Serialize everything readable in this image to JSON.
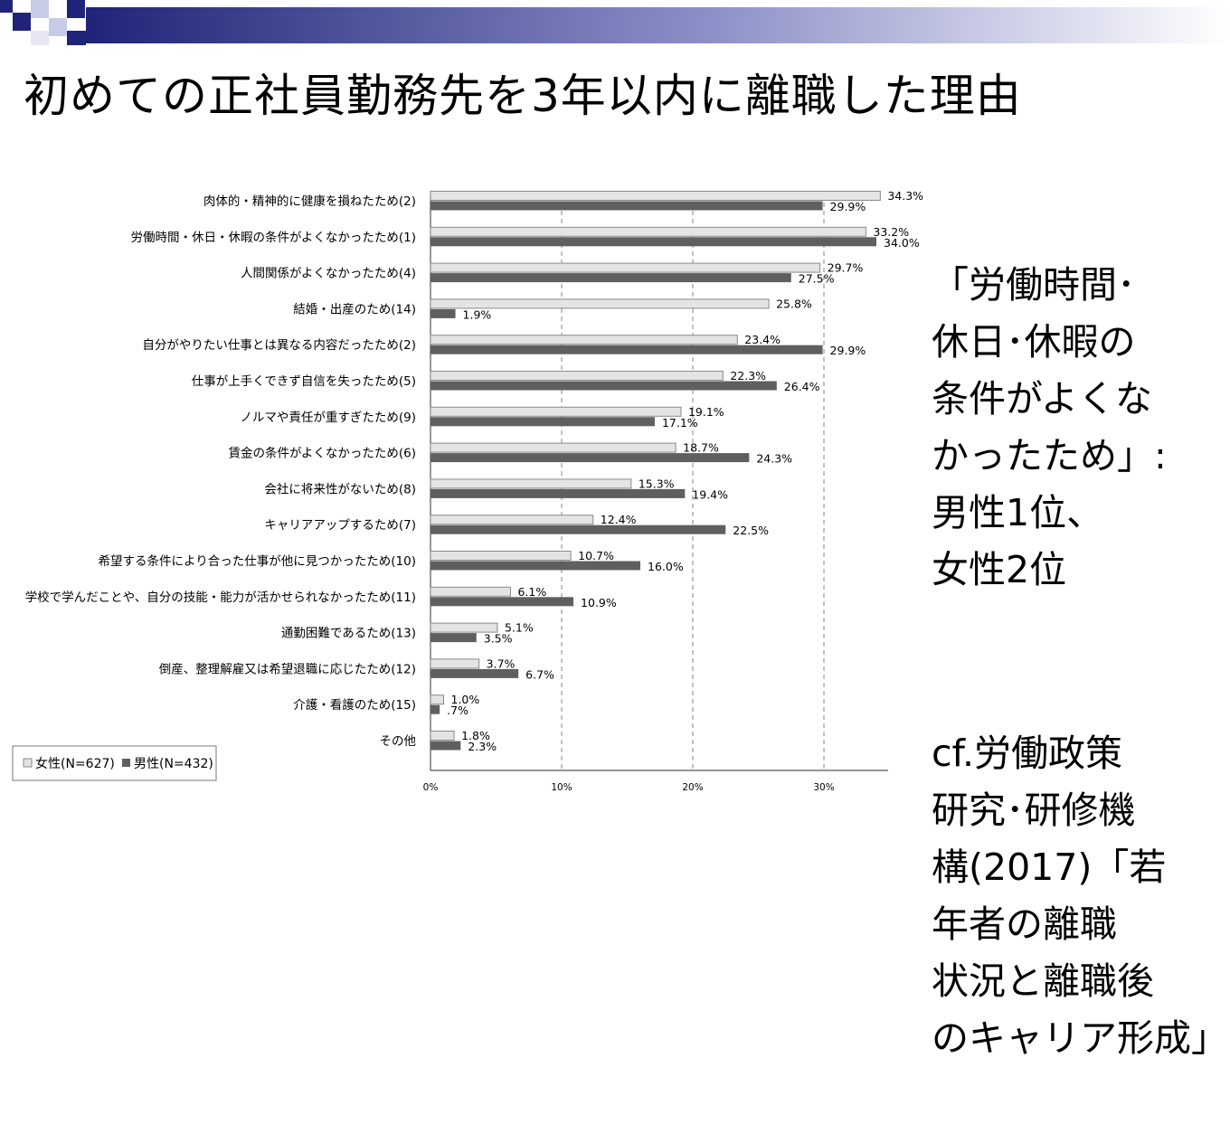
{
  "title": "初めての正社員勤務先を3年以内に離職した理由",
  "side_text": {
    "note": "「労働時間･\n休日･休暇の\n条件がよくな\nかったため」:\n男性1位、\n女性2位",
    "citation": "cf.労働政策\n研究･研修機\n構(2017)「若\n年者の離職\n状況と離職後\nのキャリア形成」"
  },
  "colors": {
    "female_fill": "#e4e4e4",
    "female_stroke": "#8a8a8a",
    "male_fill": "#5f5f5f",
    "grid": "#9a9a9a",
    "header_dark": "#1f2478"
  },
  "chart_data": {
    "type": "bar",
    "orientation": "horizontal",
    "categories": [
      "肉体的・精神的に健康を損ねたため(2)",
      "労働時間・休日・休暇の条件がよくなかったため(1)",
      "人間関係がよくなかったため(4)",
      "結婚・出産のため(14)",
      "自分がやりたい仕事とは異なる内容だったため(2)",
      "仕事が上手くできず自信を失ったため(5)",
      "ノルマや責任が重すぎたため(9)",
      "賃金の条件がよくなかったため(6)",
      "会社に将来性がないため(8)",
      "キャリアアップするため(7)",
      "希望する条件により合った仕事が他に見つかったため(10)",
      "学校で学んだことや、自分の技能・能力が活かせられなかったため(11)",
      "通勤困難であるため(13)",
      "倒産、整理解雇又は希望退職に応じたため(12)",
      "介護・看護のため(15)",
      "その他"
    ],
    "series": [
      {
        "name": "女性(N=627)",
        "values": [
          34.3,
          33.2,
          29.7,
          25.8,
          23.4,
          22.3,
          19.1,
          18.7,
          15.3,
          12.4,
          10.7,
          6.1,
          5.1,
          3.7,
          1.0,
          1.8
        ],
        "labels": [
          "34.3%",
          "33.2%",
          "29.7%",
          "25.8%",
          "23.4%",
          "22.3%",
          "19.1%",
          "18.7%",
          "15.3%",
          "12.4%",
          "10.7%",
          "6.1%",
          "5.1%",
          "3.7%",
          "1.0%",
          "1.8%"
        ]
      },
      {
        "name": "男性(N=432)",
        "values": [
          29.9,
          34.0,
          27.5,
          1.9,
          29.9,
          26.4,
          17.1,
          24.3,
          19.4,
          22.5,
          16.0,
          10.9,
          3.5,
          6.7,
          0.7,
          2.3
        ],
        "labels": [
          "29.9%",
          "34.0%",
          "27.5%",
          "1.9%",
          "29.9%",
          "26.4%",
          "17.1%",
          "24.3%",
          "19.4%",
          "22.5%",
          "16.0%",
          "10.9%",
          "3.5%",
          "6.7%",
          ".7%",
          "2.3%"
        ]
      }
    ],
    "xticks": [
      "0%",
      "10%",
      "20%",
      "30%"
    ],
    "xlim": [
      0,
      35
    ],
    "grid": true,
    "legend_position": "bottom-left"
  }
}
